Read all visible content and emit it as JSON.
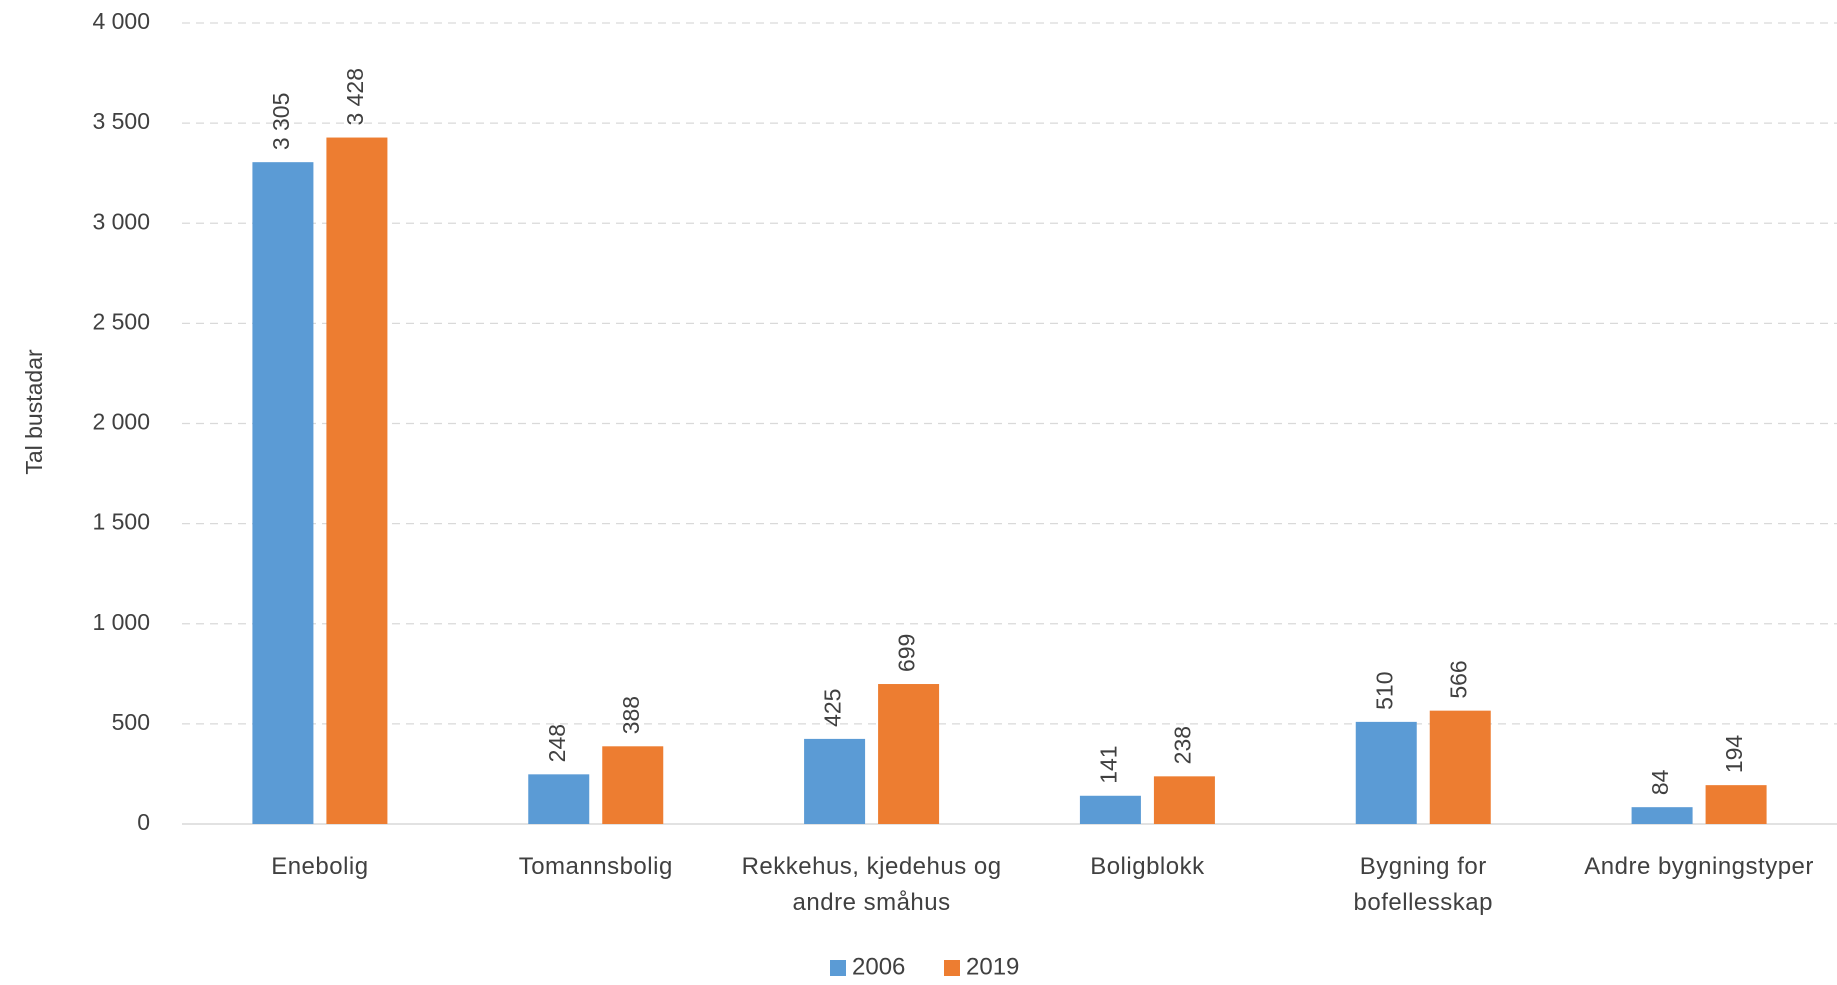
{
  "chart_data": {
    "type": "bar",
    "y_label": "Tal bustadar",
    "categories": [
      "Enebolig",
      "Tomannsbolig",
      "Rekkehus, kjedehus og andre småhus",
      "Boligblokk",
      "Bygning for bofellesskap",
      "Andre bygningstyper"
    ],
    "series": [
      {
        "name": "2006",
        "color": "#5b9bd5",
        "values": [
          3305,
          248,
          425,
          141,
          510,
          84
        ],
        "value_labels": [
          "3 305",
          "248",
          "425",
          "141",
          "510",
          "84"
        ]
      },
      {
        "name": "2019",
        "color": "#ed7d31",
        "values": [
          3428,
          388,
          699,
          238,
          566,
          194
        ],
        "value_labels": [
          "3 428",
          "388",
          "699",
          "238",
          "566",
          "194"
        ]
      }
    ],
    "ylim": [
      0,
      4000
    ],
    "yticks": [
      0,
      500,
      {
        "value": 1000,
        "label": "1 000"
      },
      {
        "value": 1500,
        "label": "1 500"
      },
      {
        "value": 2000,
        "label": "2 000"
      },
      {
        "value": 2500,
        "label": "2 500"
      },
      {
        "value": 3000,
        "label": "3 000"
      },
      {
        "value": 3500,
        "label": "3 500"
      },
      {
        "value": 4000,
        "label": "4 000"
      }
    ],
    "grid": true,
    "legend": "bottom"
  }
}
